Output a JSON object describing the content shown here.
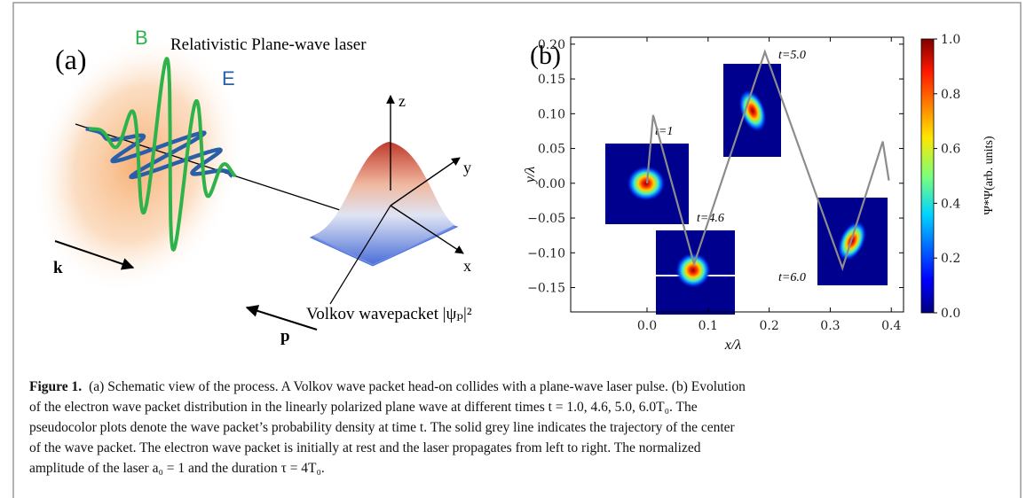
{
  "figure": {
    "panel_a": {
      "label": "(a)",
      "wave_b": "B",
      "title": "Relativistic Plane-wave laser",
      "wave_e": "E",
      "axis_z": "z",
      "axis_y": "y",
      "axis_x": "x",
      "vector_k": "k",
      "vector_p": "p",
      "wavepacket": "Volkov wavepacket |ψₚ|²"
    },
    "panel_b": {
      "label": "(b)",
      "x_label": "x/λ",
      "y_label": "y/λ",
      "xlim": [
        -0.125,
        0.42
      ],
      "ylim": [
        -0.185,
        0.21
      ],
      "xticks": [
        {
          "value": 0,
          "label": "0.0"
        },
        {
          "value": 0.1,
          "label": "0.1"
        },
        {
          "value": 0.2,
          "label": "0.2"
        },
        {
          "value": 0.3,
          "label": "0.3"
        },
        {
          "value": 0.4,
          "label": "0.4"
        }
      ],
      "yticks": [
        {
          "value": -0.15,
          "label": "−0.15"
        },
        {
          "value": -0.1,
          "label": "−0.10"
        },
        {
          "value": -0.05,
          "label": "−0.05"
        },
        {
          "value": 0,
          "label": "0.00"
        },
        {
          "value": 0.05,
          "label": "0.05"
        },
        {
          "value": 0.1,
          "label": "0.10"
        },
        {
          "value": 0.15,
          "label": "0.15"
        },
        {
          "value": 0.2,
          "label": "0.20"
        }
      ],
      "trajectory": {
        "x": [
          0.0,
          0.01,
          0.077,
          0.193,
          0.32,
          0.386,
          0.396
        ],
        "y": [
          0.0,
          0.098,
          -0.116,
          0.189,
          -0.122,
          0.06,
          0.004
        ]
      },
      "time_labels": [
        "t=1",
        "t=4.6",
        "t=5.0",
        "t=6.0"
      ],
      "colorbar": {
        "label": "Ψ*Ψ(arb. units)",
        "lim": [
          0,
          1
        ],
        "ticks": [
          {
            "value": 0,
            "label": "0.0"
          },
          {
            "value": 0.2,
            "label": "0.2"
          },
          {
            "value": 0.4,
            "label": "0.4"
          },
          {
            "value": 0.6,
            "label": "0.6"
          },
          {
            "value": 0.8,
            "label": "0.8"
          },
          {
            "value": 1,
            "label": "1.0"
          }
        ]
      }
    },
    "caption": {
      "label": "Figure 1.",
      "lines": [
        "(a) Schematic view of the process. A Volkov wave packet head-on collides with a plane-wave laser pulse. (b) Evolution",
        "of the electron wave packet distribution in the linearly polarized plane wave at different times t = 1.0, 4.6, 5.0, 6.0T₀. The",
        "pseudocolor plots denote the wave packet’s probability density at time t. The solid grey line indicates the trajectory of the center",
        "of the wave packet. The electron wave packet is initially at rest and the laser propagates from left to right. The normalized",
        "amplitude of the laser a₀ = 1 and the duration τ = 4T₀."
      ]
    }
  }
}
